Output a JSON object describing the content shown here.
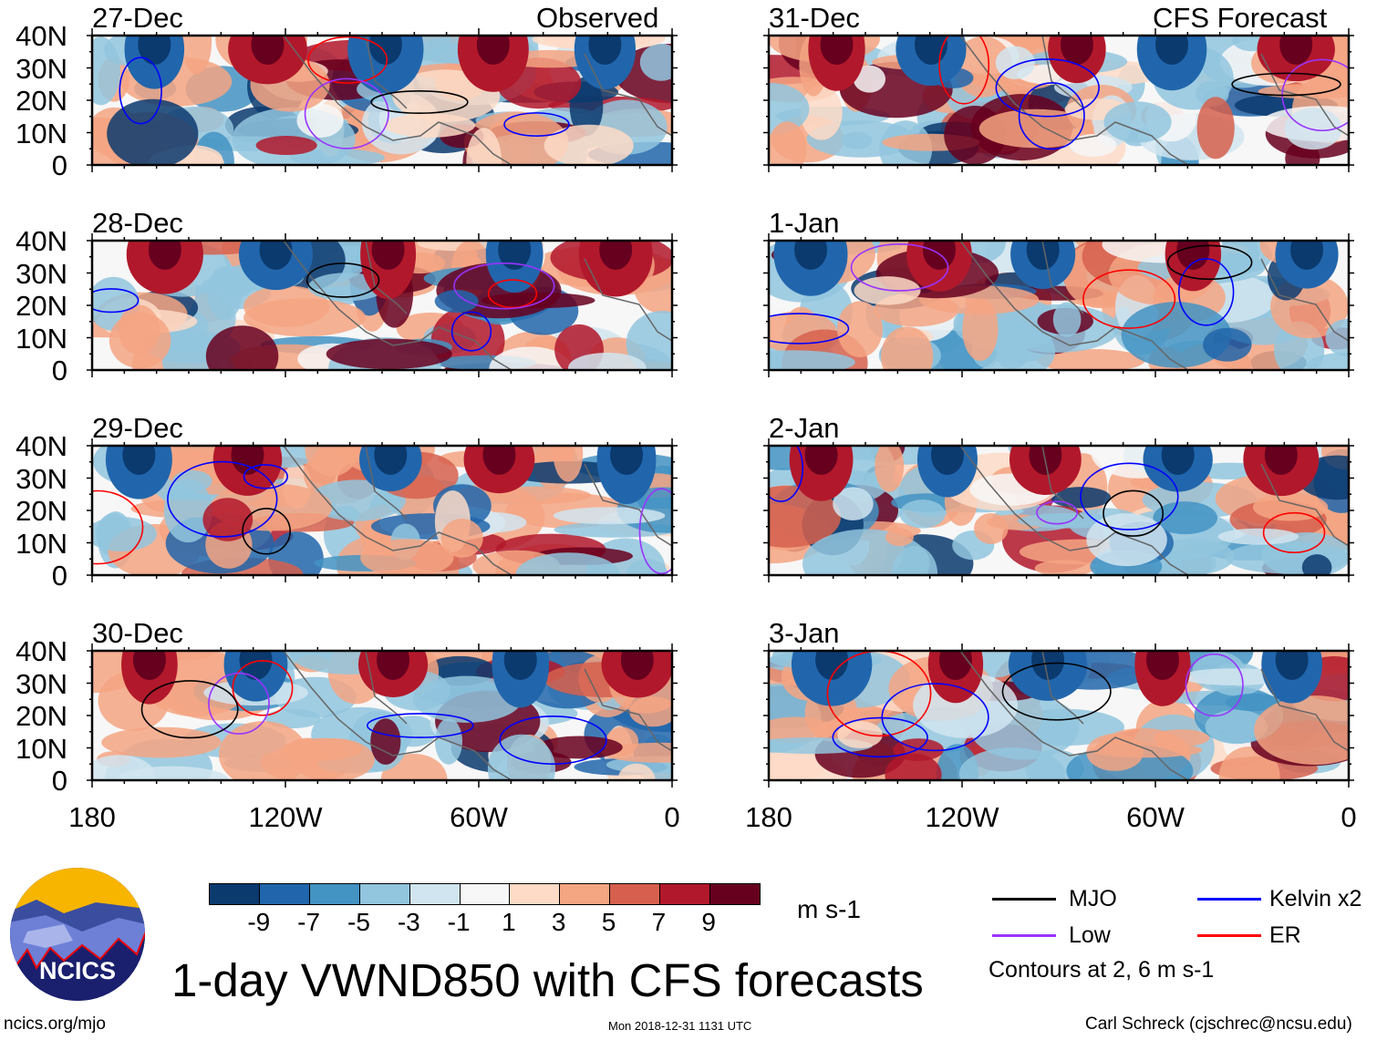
{
  "title": "1-day VWND850 with CFS forecasts",
  "column_labels": {
    "observed": "Observed",
    "forecast": "CFS Forecast"
  },
  "y_ticks": [
    "40N",
    "30N",
    "20N",
    "10N",
    "0"
  ],
  "x_ticks": [
    "180",
    "120W",
    "60W",
    "0"
  ],
  "panels": {
    "observed": [
      "27-Dec",
      "28-Dec",
      "29-Dec",
      "30-Dec"
    ],
    "forecast": [
      "31-Dec",
      "1-Jan",
      "2-Jan",
      "3-Jan"
    ]
  },
  "colorbar": {
    "unit": "m s-1",
    "labels": [
      "-9",
      "-7",
      "-5",
      "-3",
      "-1",
      "1",
      "3",
      "5",
      "7",
      "9"
    ],
    "colors": [
      "#0b3a6f",
      "#2166ac",
      "#4393c3",
      "#92c5de",
      "#d1e5f0",
      "#f7f7f7",
      "#fddbc7",
      "#f4a582",
      "#d6604d",
      "#b2182b",
      "#67001f"
    ]
  },
  "legend": {
    "items": [
      {
        "label": "MJO",
        "color": "#000000"
      },
      {
        "label": "Kelvin x2",
        "color": "#0000ff"
      },
      {
        "label": "Low",
        "color": "#9933ff"
      },
      {
        "label": "ER",
        "color": "#ff0000"
      }
    ],
    "contours_note": "Contours at 2, 6 m s-1"
  },
  "logo": {
    "text": "NCICS"
  },
  "footer": {
    "url": "ncics.org/mjo",
    "timestamp": "Mon 2018-12-31 1131 UTC",
    "credit": "Carl Schreck (cjschrec@ncsu.edu)"
  },
  "chart_data": {
    "type": "heatmap",
    "variable": "VWND850",
    "title": "1-day VWND850 with CFS forecasts",
    "units": "m s-1",
    "lon_range": [
      "180",
      "0"
    ],
    "lat_range": [
      "0",
      "40N"
    ],
    "levels": [
      -9,
      -7,
      -5,
      -3,
      -1,
      1,
      3,
      5,
      7,
      9
    ],
    "contour_levels": [
      2,
      6
    ],
    "dates_observed": [
      "27-Dec",
      "28-Dec",
      "29-Dec",
      "30-Dec"
    ],
    "dates_forecast": [
      "31-Dec",
      "1-Jan",
      "2-Jan",
      "3-Jan"
    ]
  }
}
